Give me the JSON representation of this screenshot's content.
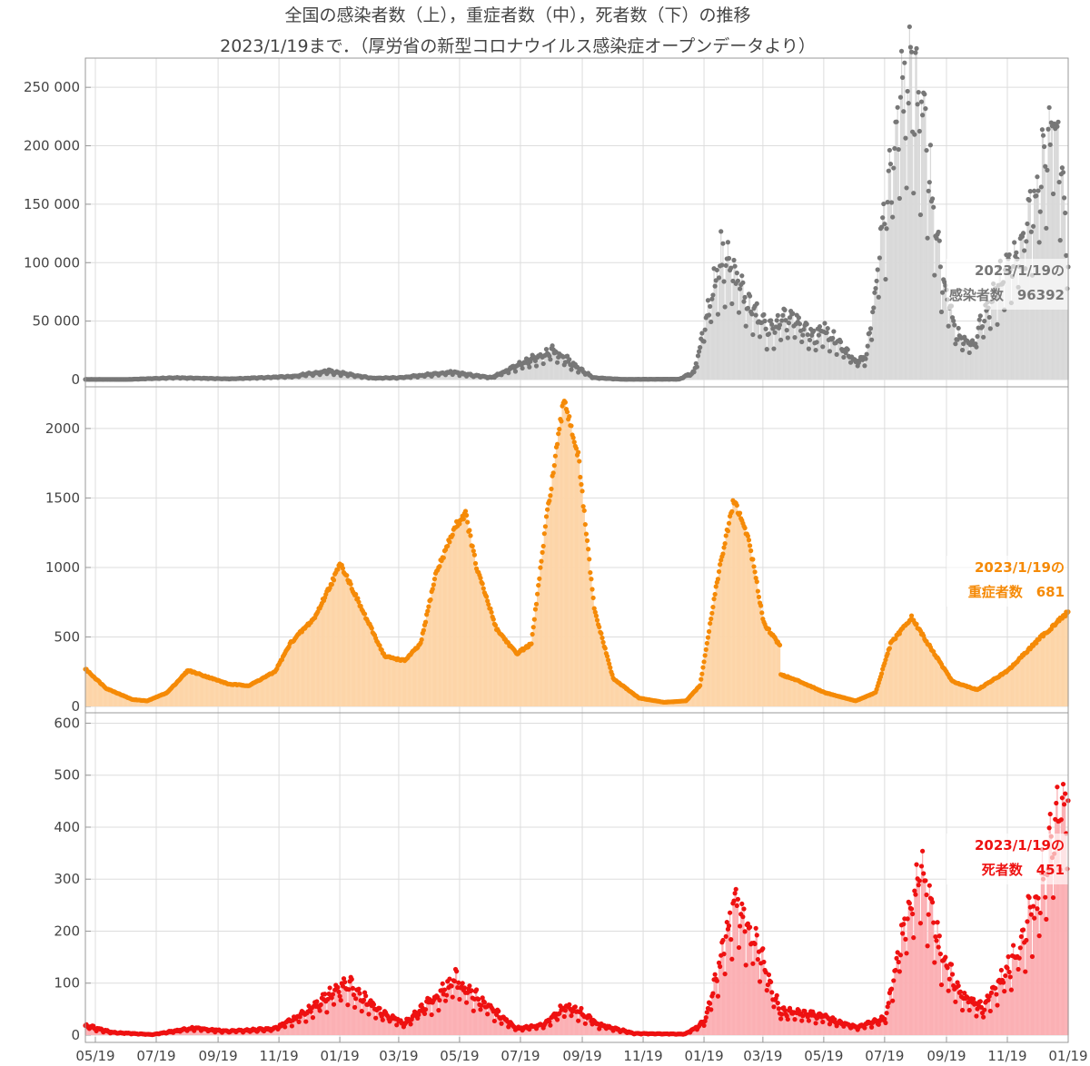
{
  "title": {
    "line1": "全国の感染者数（上），重症者数（中），死者数（下）の推移",
    "line2": "2023/1/19まで．（厚労省の新型コロナウイルス感染症オープンデータより）"
  },
  "colors": {
    "infections": "#777777",
    "infections_fill": "#d9d9d9",
    "severe": "#f58a07",
    "severe_fill": "#fdd5a8",
    "deaths": "#ee1111",
    "deaths_fill": "#fbb0b4",
    "grid": "#dddddd",
    "frame": "#999999"
  },
  "chart_data": {
    "type": "area",
    "x_range": [
      "2020-05-09",
      "2023-01-19"
    ],
    "x_tick_labels": [
      "05/19",
      "07/19",
      "09/19",
      "11/19",
      "01/19",
      "03/19",
      "05/19",
      "07/19",
      "09/19",
      "11/19",
      "01/19",
      "03/19",
      "05/19",
      "07/19",
      "09/19",
      "11/19",
      "01/19"
    ],
    "x_tick_dates": [
      "2020-05-19",
      "2020-07-19",
      "2020-09-19",
      "2020-11-19",
      "2021-01-19",
      "2021-03-19",
      "2021-05-19",
      "2021-07-19",
      "2021-09-19",
      "2021-11-19",
      "2022-01-19",
      "2022-03-19",
      "2022-05-19",
      "2022-07-19",
      "2022-09-19",
      "2022-11-19",
      "2023-01-19"
    ],
    "panels": [
      {
        "key": "infections",
        "ylim": [
          0,
          275000
        ],
        "y_ticks": [
          0,
          50000,
          100000,
          150000,
          200000,
          250000
        ],
        "y_tick_labels": [
          "0",
          "50 000",
          "100 000",
          "150 000",
          "200 000",
          "250 000"
        ],
        "weekly_oscillation": true,
        "annotation": {
          "line1": "2023/1/19の",
          "line2": "感染者数　96392"
        },
        "keypoints": [
          [
            "2020-05-09",
            150
          ],
          [
            "2020-06-20",
            100
          ],
          [
            "2020-08-07",
            1500
          ],
          [
            "2020-10-01",
            600
          ],
          [
            "2020-12-01",
            2500
          ],
          [
            "2021-01-09",
            7000
          ],
          [
            "2021-02-20",
            1200
          ],
          [
            "2021-03-20",
            1500
          ],
          [
            "2021-05-10",
            6000
          ],
          [
            "2021-06-20",
            1600
          ],
          [
            "2021-08-20",
            24000
          ],
          [
            "2021-09-30",
            1500
          ],
          [
            "2021-10-30",
            200
          ],
          [
            "2021-12-25",
            300
          ],
          [
            "2022-01-09",
            6000
          ],
          [
            "2022-01-20",
            45000
          ],
          [
            "2022-02-05",
            100000
          ],
          [
            "2022-02-15",
            92000
          ],
          [
            "2022-03-05",
            60000
          ],
          [
            "2022-03-25",
            40000
          ],
          [
            "2022-04-15",
            50000
          ],
          [
            "2022-05-10",
            35000
          ],
          [
            "2022-05-20",
            40000
          ],
          [
            "2022-06-20",
            15000
          ],
          [
            "2022-07-01",
            20000
          ],
          [
            "2022-07-20",
            140000
          ],
          [
            "2022-08-05",
            230000
          ],
          [
            "2022-08-20",
            240000
          ],
          [
            "2022-08-30",
            190000
          ],
          [
            "2022-09-15",
            80000
          ],
          [
            "2022-09-30",
            35000
          ],
          [
            "2022-10-15",
            28000
          ],
          [
            "2022-11-05",
            70000
          ],
          [
            "2022-12-01",
            110000
          ],
          [
            "2022-12-20",
            155000
          ],
          [
            "2023-01-06",
            215000
          ],
          [
            "2023-01-19",
            96392
          ]
        ]
      },
      {
        "key": "severe",
        "ylim": [
          0,
          2300
        ],
        "y_ticks": [
          0,
          500,
          1000,
          1500,
          2000
        ],
        "y_tick_labels": [
          "0",
          "500",
          "1000",
          "1500",
          "2000"
        ],
        "weekly_oscillation": false,
        "annotation": {
          "line1": "2023/1/19の",
          "line2": "重症者数　681"
        },
        "keypoints": [
          [
            "2020-05-09",
            270
          ],
          [
            "2020-05-30",
            130
          ],
          [
            "2020-06-25",
            50
          ],
          [
            "2020-07-10",
            40
          ],
          [
            "2020-07-30",
            100
          ],
          [
            "2020-08-20",
            260
          ],
          [
            "2020-09-30",
            160
          ],
          [
            "2020-10-20",
            150
          ],
          [
            "2020-11-15",
            250
          ],
          [
            "2020-12-01",
            460
          ],
          [
            "2020-12-25",
            640
          ],
          [
            "2021-01-20",
            1030
          ],
          [
            "2021-02-10",
            700
          ],
          [
            "2021-03-05",
            360
          ],
          [
            "2021-03-25",
            330
          ],
          [
            "2021-04-10",
            450
          ],
          [
            "2021-04-25",
            950
          ],
          [
            "2021-05-15",
            1300
          ],
          [
            "2021-05-25",
            1390
          ],
          [
            "2021-06-05",
            1000
          ],
          [
            "2021-06-25",
            560
          ],
          [
            "2021-07-15",
            380
          ],
          [
            "2021-07-30",
            450
          ],
          [
            "2021-08-15",
            1400
          ],
          [
            "2021-09-01",
            2220
          ],
          [
            "2021-09-15",
            1800
          ],
          [
            "2021-10-01",
            700
          ],
          [
            "2021-10-20",
            200
          ],
          [
            "2021-11-15",
            60
          ],
          [
            "2021-12-10",
            30
          ],
          [
            "2022-01-01",
            40
          ],
          [
            "2022-01-15",
            150
          ],
          [
            "2022-02-01",
            900
          ],
          [
            "2022-02-18",
            1490
          ],
          [
            "2022-03-05",
            1200
          ],
          [
            "2022-03-20",
            600
          ],
          [
            "2022-04-05",
            440
          ],
          [
            "2022-04-06",
            230
          ],
          [
            "2022-04-25",
            180
          ],
          [
            "2022-05-20",
            100
          ],
          [
            "2022-06-20",
            40
          ],
          [
            "2022-07-10",
            100
          ],
          [
            "2022-07-25",
            450
          ],
          [
            "2022-08-15",
            640
          ],
          [
            "2022-09-05",
            400
          ],
          [
            "2022-09-25",
            180
          ],
          [
            "2022-10-20",
            120
          ],
          [
            "2022-11-20",
            260
          ],
          [
            "2022-12-20",
            480
          ],
          [
            "2023-01-19",
            681
          ]
        ]
      },
      {
        "key": "deaths",
        "ylim": [
          0,
          620
        ],
        "y_ticks": [
          0,
          100,
          200,
          300,
          400,
          500,
          600
        ],
        "y_tick_labels": [
          "0",
          "100",
          "200",
          "300",
          "400",
          "500",
          "600"
        ],
        "weekly_oscillation": true,
        "annotation": {
          "line1": "2023/1/19の",
          "line2": "死者数　451"
        },
        "keypoints": [
          [
            "2020-05-09",
            18
          ],
          [
            "2020-06-05",
            5
          ],
          [
            "2020-07-15",
            1
          ],
          [
            "2020-08-25",
            13
          ],
          [
            "2020-10-01",
            7
          ],
          [
            "2020-11-15",
            12
          ],
          [
            "2020-12-15",
            40
          ],
          [
            "2021-01-25",
            95
          ],
          [
            "2021-02-25",
            45
          ],
          [
            "2021-03-25",
            22
          ],
          [
            "2021-05-15",
            100
          ],
          [
            "2021-06-15",
            55
          ],
          [
            "2021-07-15",
            12
          ],
          [
            "2021-08-10",
            18
          ],
          [
            "2021-09-05",
            55
          ],
          [
            "2021-10-05",
            20
          ],
          [
            "2021-11-10",
            3
          ],
          [
            "2021-12-31",
            2
          ],
          [
            "2022-01-20",
            25
          ],
          [
            "2022-02-20",
            250
          ],
          [
            "2022-03-15",
            150
          ],
          [
            "2022-04-05",
            45
          ],
          [
            "2022-05-15",
            35
          ],
          [
            "2022-06-20",
            15
          ],
          [
            "2022-07-20",
            30
          ],
          [
            "2022-08-05",
            180
          ],
          [
            "2022-08-25",
            300
          ],
          [
            "2022-09-15",
            140
          ],
          [
            "2022-10-05",
            70
          ],
          [
            "2022-10-25",
            50
          ],
          [
            "2022-11-20",
            120
          ],
          [
            "2022-12-20",
            250
          ],
          [
            "2023-01-10",
            420
          ],
          [
            "2023-01-19",
            451
          ]
        ]
      }
    ]
  }
}
